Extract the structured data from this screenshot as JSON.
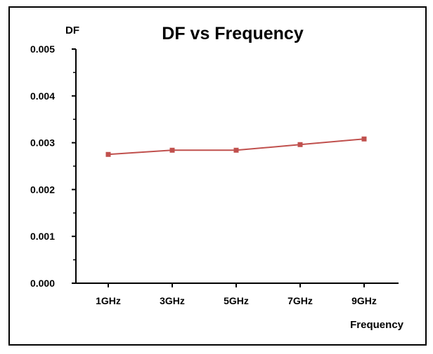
{
  "chart_data": {
    "type": "line",
    "title": "DF vs Frequency",
    "xlabel": "Frequency",
    "ylabel": "DF",
    "categories": [
      "1GHz",
      "3GHz",
      "5GHz",
      "7GHz",
      "9GHz"
    ],
    "series": [
      {
        "name": "DF",
        "values": [
          0.00275,
          0.00284,
          0.00284,
          0.00296,
          0.00308
        ]
      }
    ],
    "yticks": [
      "0.000",
      "0.001",
      "0.002",
      "0.003",
      "0.004",
      "0.005"
    ],
    "ylim": [
      0,
      0.005
    ],
    "grid": false,
    "line_color": "#c0504d"
  }
}
